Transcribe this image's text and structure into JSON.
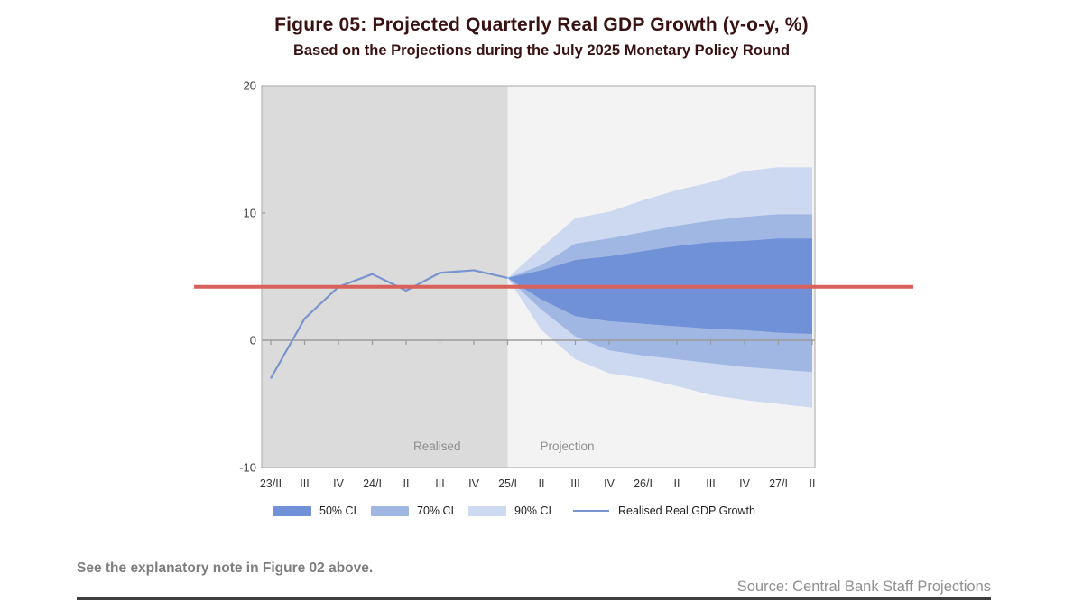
{
  "figure": {
    "title": "Figure 05: Projected Quarterly Real GDP Growth (y-o-y, %)",
    "subtitle": "Based on the Projections during the July 2025 Monetary Policy Round",
    "title_color": "#3a1111"
  },
  "chart_data": {
    "type": "area",
    "title": "Figure 05: Projected Quarterly Real GDP Growth (y-o-y, %)",
    "subtitle": "Based on the Projections during the July 2025 Monetary Policy Round",
    "categories": [
      "23/II",
      "III",
      "IV",
      "24/I",
      "II",
      "III",
      "IV",
      "25/I",
      "II",
      "III",
      "IV",
      "26/I",
      "II",
      "III",
      "IV",
      "27/I",
      "II"
    ],
    "ylim": [
      -10,
      20
    ],
    "y_ticks": [
      20,
      10,
      0,
      -10
    ],
    "grid": false,
    "legend_position": "bottom",
    "projection_start_index": 7,
    "regions": [
      {
        "label": "Realised",
        "bg": "#dbdbdb",
        "from_index": 0,
        "to_index": 7
      },
      {
        "label": "Projection",
        "bg": "#f3f3f4",
        "from_index": 7,
        "to_index": 16
      }
    ],
    "realized": {
      "name": "Realised Real GDP Growth",
      "color": "#7a94cf",
      "values": [
        -3.0,
        1.7,
        4.2,
        5.2,
        3.9,
        5.3,
        5.5,
        4.9
      ]
    },
    "bands": [
      {
        "name": "90% CI",
        "color": "#cdd9f0",
        "upper": [
          4.9,
          7.3,
          9.6,
          10.1,
          11.0,
          11.8,
          12.4,
          13.3,
          13.6,
          13.6
        ],
        "lower": [
          4.9,
          0.8,
          -1.5,
          -2.6,
          -3.0,
          -3.6,
          -4.3,
          -4.7,
          -5.0,
          -5.3
        ]
      },
      {
        "name": "70% CI",
        "color": "#a1b7e3",
        "upper": [
          4.9,
          5.9,
          7.6,
          8.0,
          8.5,
          9.0,
          9.4,
          9.7,
          9.9,
          9.9
        ],
        "lower": [
          4.9,
          2.4,
          0.3,
          -0.8,
          -1.2,
          -1.5,
          -1.8,
          -2.1,
          -2.3,
          -2.5
        ]
      },
      {
        "name": "50% CI",
        "color": "#7091d7",
        "upper": [
          4.9,
          5.5,
          6.3,
          6.6,
          7.0,
          7.4,
          7.7,
          7.8,
          8.0,
          8.0
        ],
        "lower": [
          4.9,
          3.2,
          1.9,
          1.5,
          1.3,
          1.1,
          0.9,
          0.8,
          0.6,
          0.5
        ]
      }
    ],
    "policy_line": {
      "value": 4.2,
      "color": "#d9615c"
    },
    "axis_colors": {
      "zero_line": "#9b9b9b",
      "border": "#b5b5b5",
      "tick_text": "#3f3f3f",
      "region_text": "#8f8f8f"
    }
  },
  "legend": {
    "ci50": "50% CI",
    "ci70": "70% CI",
    "ci90": "90% CI",
    "realised": "Realised Real GDP Growth"
  },
  "footer": {
    "note": "See the explanatory note in Figure 02 above.",
    "source": "Source: Central Bank Staff Projections"
  }
}
